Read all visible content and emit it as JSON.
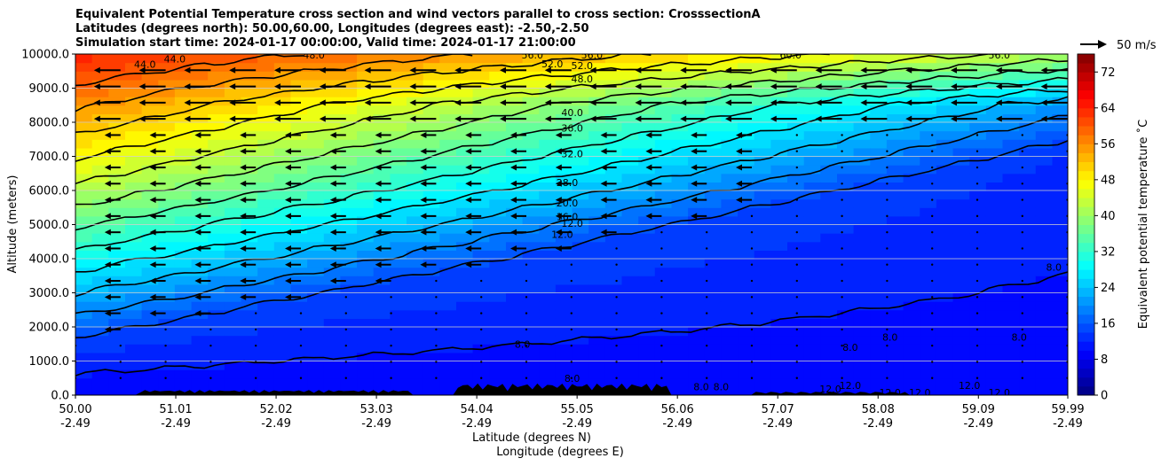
{
  "title_lines": [
    "Equivalent Potential Temperature cross section and wind vectors parallel to cross section: CrosssectionA",
    "Latitudes (degrees north): 50.00,60.00, Longitudes (degrees east): -2.50,-2.50",
    "Simulation start time: 2024-01-17 00:00:00, Valid time: 2024-01-17 21:00:00"
  ],
  "chart_data": {
    "type": "heatmap",
    "subtype": "filled contour cross-section with contour lines and wind vectors",
    "ylabel": "Altitude (meters)",
    "xlabel_line1": "Latitude (degrees N)",
    "xlabel_line2": "Longitude (degrees E)",
    "ylim": [
      0,
      10000
    ],
    "yticks": [
      "0.0",
      "1000.0",
      "2000.0",
      "3000.0",
      "4000.0",
      "5000.0",
      "6000.0",
      "7000.0",
      "8000.0",
      "9000.0",
      "10000.0"
    ],
    "ytick_values": [
      0,
      1000,
      2000,
      3000,
      4000,
      5000,
      6000,
      7000,
      8000,
      9000,
      10000
    ],
    "xlim": [
      50.0,
      59.99
    ],
    "xticks_lat": [
      "50.00",
      "51.01",
      "52.02",
      "53.03",
      "54.04",
      "55.05",
      "56.06",
      "57.07",
      "58.08",
      "59.09",
      "59.99"
    ],
    "xticks_lon": [
      "-2.49",
      "-2.49",
      "-2.49",
      "-2.49",
      "-2.49",
      "-2.49",
      "-2.49",
      "-2.49",
      "-2.49",
      "-2.49",
      "-2.49"
    ],
    "xtick_values": [
      50.0,
      51.01,
      52.02,
      53.03,
      54.04,
      55.05,
      56.06,
      57.07,
      58.08,
      59.09,
      59.99
    ],
    "grid": "horizontal",
    "colorbar": {
      "label": "Equivalent potential temperature ˚C",
      "range": [
        0,
        76
      ],
      "ticks": [
        "0",
        "8",
        "16",
        "24",
        "32",
        "40",
        "48",
        "56",
        "64",
        "72"
      ],
      "tick_values": [
        0,
        8,
        16,
        24,
        32,
        40,
        48,
        56,
        64,
        72
      ],
      "colormap": "jet"
    },
    "quiver_key": {
      "label": "50 m/s",
      "placement": "top-right"
    },
    "contour_labels": [
      {
        "text": "44.0",
        "x": 50.7,
        "y": 9700
      },
      {
        "text": "44.0",
        "x": 51.0,
        "y": 9860
      },
      {
        "text": "48.0",
        "x": 52.4,
        "y": 9980
      },
      {
        "text": "56.0",
        "x": 54.6,
        "y": 9980
      },
      {
        "text": "56.0",
        "x": 55.2,
        "y": 9980
      },
      {
        "text": "52.0",
        "x": 54.8,
        "y": 9720
      },
      {
        "text": "52.0",
        "x": 55.1,
        "y": 9660
      },
      {
        "text": "48.0",
        "x": 55.1,
        "y": 9270
      },
      {
        "text": "40.0",
        "x": 55.0,
        "y": 8290
      },
      {
        "text": "36.0",
        "x": 55.0,
        "y": 7830
      },
      {
        "text": "32.0",
        "x": 55.0,
        "y": 7080
      },
      {
        "text": "28.0",
        "x": 54.95,
        "y": 6230
      },
      {
        "text": "20.0",
        "x": 54.95,
        "y": 5640
      },
      {
        "text": "16.0",
        "x": 54.95,
        "y": 5240
      },
      {
        "text": "12.0",
        "x": 55.0,
        "y": 5040
      },
      {
        "text": "12.0",
        "x": 54.9,
        "y": 4720
      },
      {
        "text": "60.0",
        "x": 57.2,
        "y": 9980
      },
      {
        "text": "56.0",
        "x": 59.3,
        "y": 9980
      },
      {
        "text": "8.0",
        "x": 59.85,
        "y": 3750
      },
      {
        "text": "8.0",
        "x": 54.5,
        "y": 1500
      },
      {
        "text": "8.0",
        "x": 55.0,
        "y": 500
      },
      {
        "text": "8.0",
        "x": 57.8,
        "y": 1400
      },
      {
        "text": "8.0",
        "x": 58.2,
        "y": 1700
      },
      {
        "text": "8.0",
        "x": 59.5,
        "y": 1700
      },
      {
        "text": "8.0",
        "x": 56.3,
        "y": 250
      },
      {
        "text": "8.0",
        "x": 56.5,
        "y": 250
      },
      {
        "text": "12.0",
        "x": 57.6,
        "y": 180
      },
      {
        "text": "12.0",
        "x": 57.8,
        "y": 280
      },
      {
        "text": "12.0",
        "x": 58.2,
        "y": 80
      },
      {
        "text": "12.0",
        "x": 58.5,
        "y": 80
      },
      {
        "text": "12.0",
        "x": 59.0,
        "y": 280
      },
      {
        "text": "12.0",
        "x": 59.3,
        "y": 80
      }
    ],
    "contour_levels": [
      8,
      12,
      16,
      20,
      24,
      28,
      32,
      36,
      40,
      44,
      48,
      52,
      56,
      60
    ],
    "wind_vectors_direction": "leftward (southward along section)",
    "wind_speed_approx_ms": {
      "upper_levels": 25,
      "mid_levels": 15,
      "lower_levels": 3
    }
  }
}
